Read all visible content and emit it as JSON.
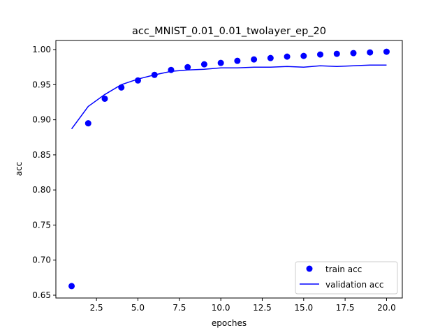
{
  "chart_data": {
    "type": "line",
    "title": "acc_MNIST_0.01_0.01_twolayer_ep_20",
    "xlabel": "epoches",
    "ylabel": "acc",
    "xlim": [
      0.05,
      20.95
    ],
    "ylim": [
      0.646,
      1.013
    ],
    "xticks": [
      2.5,
      5.0,
      7.5,
      10.0,
      12.5,
      15.0,
      17.5,
      20.0
    ],
    "xtick_labels": [
      "2.5",
      "5.0",
      "7.5",
      "10.0",
      "12.5",
      "15.0",
      "17.5",
      "20.0"
    ],
    "yticks": [
      0.65,
      0.7,
      0.75,
      0.8,
      0.85,
      0.9,
      0.95,
      1.0
    ],
    "ytick_labels": [
      "0.65",
      "0.70",
      "0.75",
      "0.80",
      "0.85",
      "0.90",
      "0.95",
      "1.00"
    ],
    "grid": false,
    "legend_position": "lower-right",
    "x": [
      1,
      2,
      3,
      4,
      5,
      6,
      7,
      8,
      9,
      10,
      11,
      12,
      13,
      14,
      15,
      16,
      17,
      18,
      19,
      20
    ],
    "series": [
      {
        "name": "train acc",
        "style": "markers",
        "color": "#0000ff",
        "values": [
          0.663,
          0.895,
          0.93,
          0.946,
          0.956,
          0.964,
          0.971,
          0.975,
          0.979,
          0.981,
          0.984,
          0.986,
          0.988,
          0.99,
          0.991,
          0.993,
          0.994,
          0.995,
          0.996,
          0.997
        ]
      },
      {
        "name": "validation acc",
        "style": "line",
        "color": "#0000ff",
        "values": [
          0.887,
          0.919,
          0.936,
          0.95,
          0.958,
          0.964,
          0.969,
          0.971,
          0.972,
          0.974,
          0.974,
          0.975,
          0.975,
          0.976,
          0.975,
          0.977,
          0.976,
          0.977,
          0.978,
          0.978
        ]
      }
    ]
  }
}
